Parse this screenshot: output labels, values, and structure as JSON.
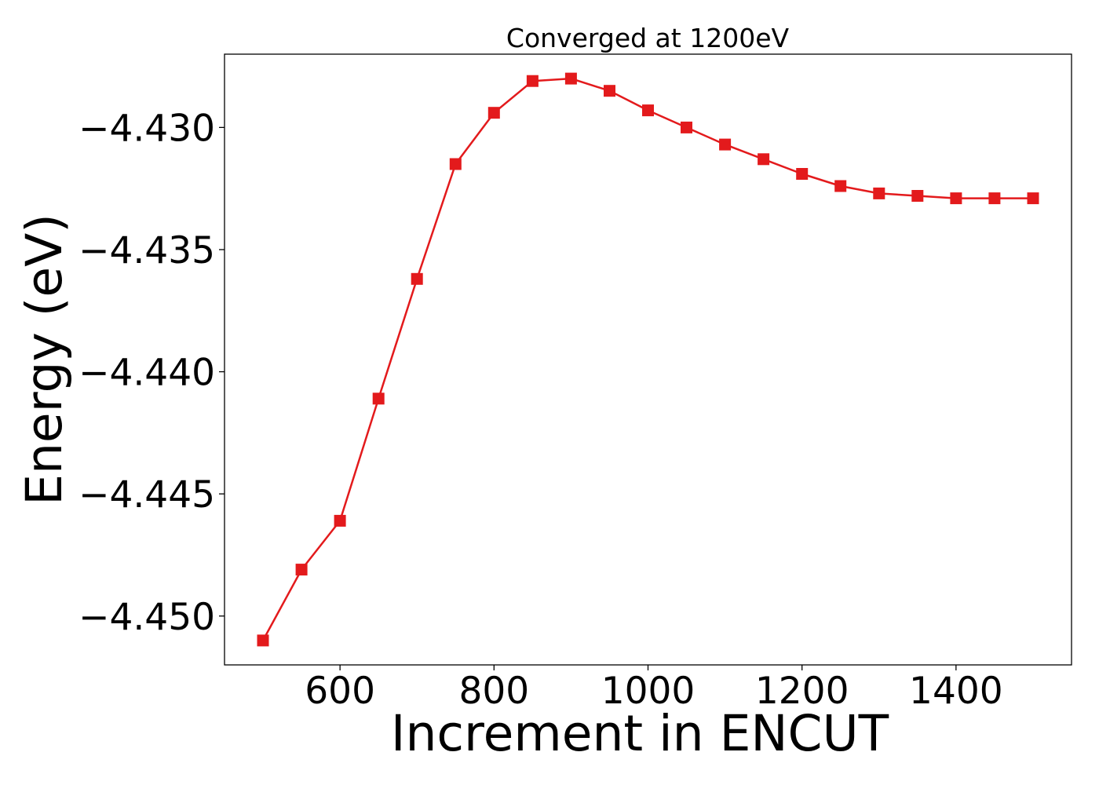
{
  "chart_data": {
    "type": "line",
    "title": "Converged at 1200eV",
    "xlabel": "Increment in ENCUT",
    "ylabel": "Energy (eV)",
    "xlim": [
      450,
      1550
    ],
    "ylim": [
      -4.452,
      -4.427
    ],
    "xticks": [
      600,
      800,
      1000,
      1200,
      1400
    ],
    "xtick_labels": [
      "600",
      "800",
      "1000",
      "1200",
      "1400"
    ],
    "yticks": [
      -4.45,
      -4.445,
      -4.44,
      -4.435,
      -4.43
    ],
    "ytick_labels": [
      "−4.450",
      "−4.445",
      "−4.440",
      "−4.435",
      "−4.430"
    ],
    "grid": false,
    "legend": "none",
    "series": [
      {
        "color": "#e31a1c",
        "marker": "square",
        "x": [
          500,
          550,
          600,
          650,
          700,
          750,
          800,
          850,
          900,
          950,
          1000,
          1050,
          1100,
          1150,
          1200,
          1250,
          1300,
          1350,
          1400,
          1450,
          1500
        ],
        "y": [
          -4.451,
          -4.4481,
          -4.4461,
          -4.4411,
          -4.4362,
          -4.4315,
          -4.4294,
          -4.4281,
          -4.428,
          -4.4285,
          -4.4293,
          -4.43,
          -4.4307,
          -4.4313,
          -4.4319,
          -4.4324,
          -4.4327,
          -4.4328,
          -4.4329,
          -4.4329,
          -4.4329
        ]
      }
    ]
  }
}
